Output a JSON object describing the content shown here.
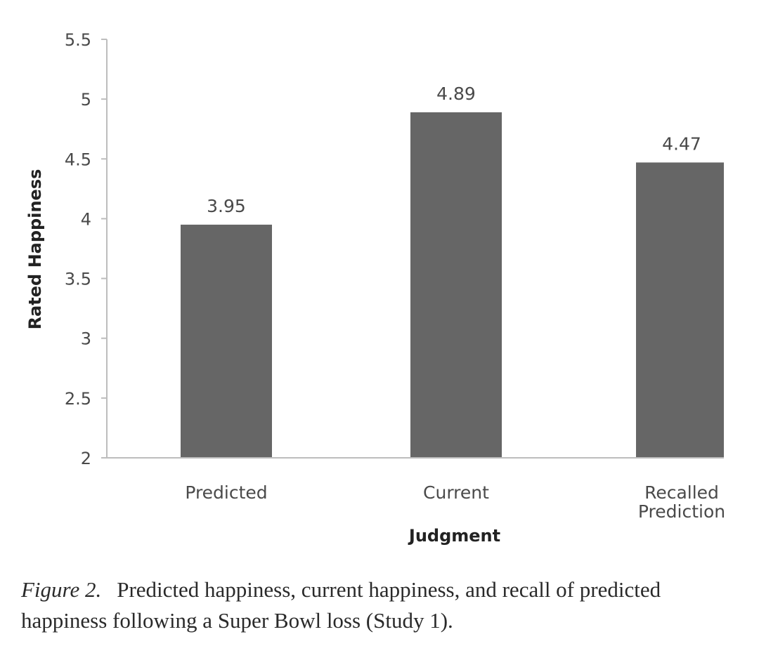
{
  "chart_data": {
    "type": "bar",
    "categories": [
      [
        "Predicted"
      ],
      [
        "Current"
      ],
      [
        "Recalled",
        "Prediction"
      ]
    ],
    "values": [
      3.95,
      4.89,
      4.47
    ],
    "data_labels": [
      "3.95",
      "4.89",
      "4.47"
    ],
    "xlabel": "Judgment",
    "ylabel": "Rated Happiness",
    "ylim": [
      2,
      5.5
    ],
    "yticks": [
      "2",
      "2.5",
      "3",
      "3.5",
      "4",
      "4.5",
      "5",
      "5.5"
    ],
    "bar_color": "#666666",
    "axis_color": "#bdbdbd",
    "grid": false
  },
  "caption": {
    "label": "Figure 2.",
    "text": "Predicted happiness, current happiness, and recall of predicted happiness following a Super Bowl loss (Study 1)."
  }
}
